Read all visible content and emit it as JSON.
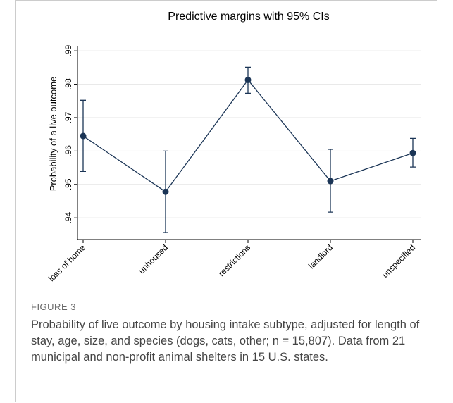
{
  "chart_data": {
    "type": "line",
    "title": "Predictive margins with 95% CIs",
    "y_label": "Probability of a live outcome",
    "categories": [
      "loss of home",
      "unhoused",
      "restrictions",
      "landlord",
      "unspecified"
    ],
    "series": [
      {
        "color": "#1b3556",
        "values": [
          0.9645,
          0.9478,
          0.9813,
          0.951,
          0.9594
        ],
        "lower": [
          0.9539,
          0.9356,
          0.9773,
          0.9417,
          0.9552
        ],
        "upper": [
          0.9752,
          0.96,
          0.9851,
          0.9605,
          0.9638
        ]
      }
    ],
    "ylim": [
      0.9335,
      0.9913
    ],
    "yticks": [
      {
        "value": 0.94,
        "label": ".94"
      },
      {
        "value": 0.95,
        "label": ".95"
      },
      {
        "value": 0.96,
        "label": ".96"
      },
      {
        "value": 0.97,
        "label": ".97"
      },
      {
        "value": 0.98,
        "label": ".98"
      },
      {
        "value": 0.99,
        "label": ".99"
      }
    ],
    "grid": true
  },
  "figure_label": "FIGURE 3",
  "caption": "Probability of live outcome by housing intake subtype, adjusted for length of stay, age, size, and species (dogs, cats, other; n = 15,807). Data from 21 municipal and non-profit animal shelters in 15 U.S. states."
}
